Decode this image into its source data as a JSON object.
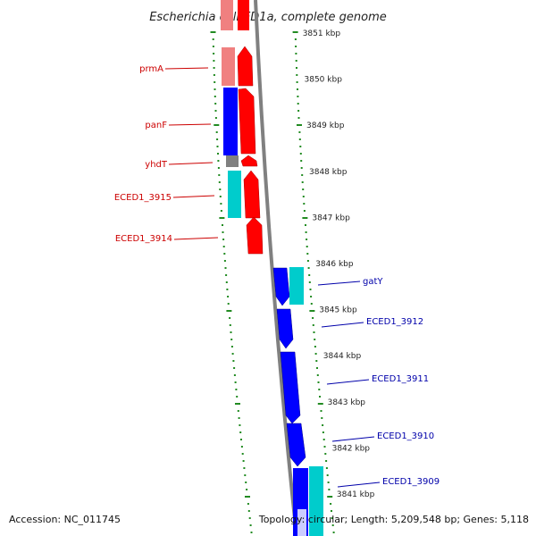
{
  "title": "Escherichia coli ED1a, complete genome",
  "accession": "Accession: NC_011745",
  "stats": "Topology: circular; Length: 5,209,548 bp; Genes: 5,118",
  "colors": {
    "forward_gene": "#ff0000",
    "forward_rna": "#f08080",
    "reverse_gene": "#0000ff",
    "reverse_rna": "#00cccc",
    "pseudo": "#808080",
    "ticks": "#228b22",
    "backbone": "#808080",
    "left_label": "#cc0000",
    "right_label": "#0000aa"
  },
  "ticks": [
    {
      "kbp": 3851,
      "label": "3851 kbp"
    },
    {
      "kbp": 3850,
      "label": "3850 kbp"
    },
    {
      "kbp": 3849,
      "label": "3849 kbp"
    },
    {
      "kbp": 3848,
      "label": "3848 kbp"
    },
    {
      "kbp": 3847,
      "label": "3847 kbp"
    },
    {
      "kbp": 3846,
      "label": "3846 kbp"
    },
    {
      "kbp": 3845,
      "label": "3845 kbp"
    },
    {
      "kbp": 3844,
      "label": "3844 kbp"
    },
    {
      "kbp": 3843,
      "label": "3843 kbp"
    },
    {
      "kbp": 3842,
      "label": "3842 kbp"
    },
    {
      "kbp": 3841,
      "label": "3841 kbp"
    }
  ],
  "left_labels": [
    "prmA",
    "panF",
    "yhdT",
    "ECED1_3915",
    "ECED1_3914"
  ],
  "right_labels": [
    "gatY",
    "ECED1_3912",
    "ECED1_3911",
    "ECED1_3910",
    "ECED1_3909"
  ]
}
